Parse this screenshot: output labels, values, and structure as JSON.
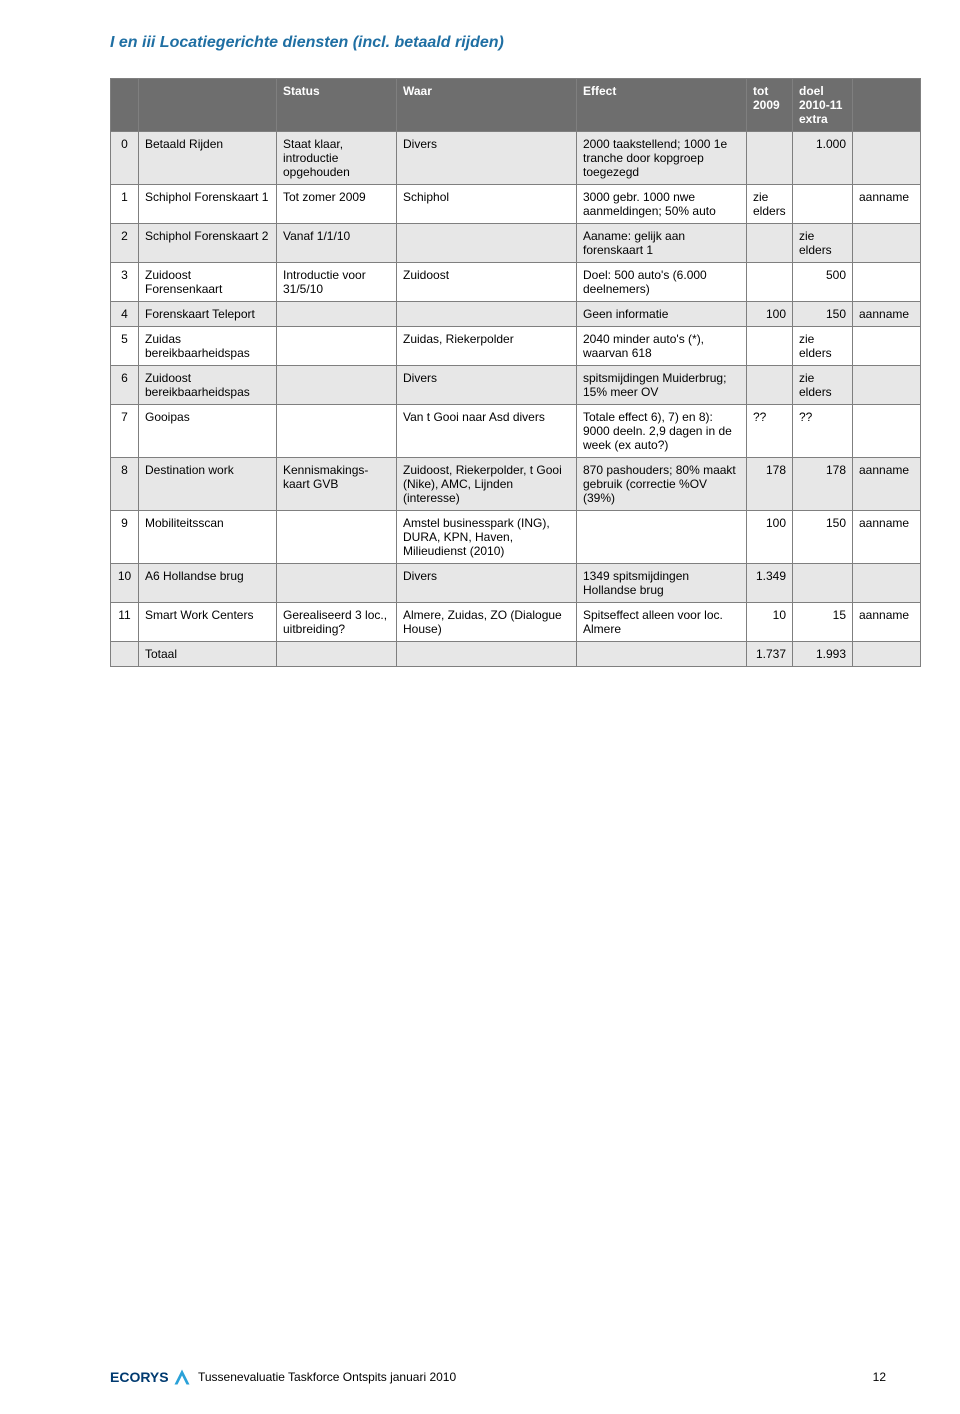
{
  "title": "I en iii Locatiegerichte diensten (incl. betaald rijden)",
  "columns": [
    "",
    "",
    "Status",
    "Waar",
    "Effect",
    "tot 2009",
    "doel 2010-11 extra",
    ""
  ],
  "rows": [
    {
      "band": true,
      "n": "0",
      "c1": "Betaald Rijden",
      "c2": "Staat klaar, introductie opgehouden",
      "c3": "Divers",
      "c4": "2000 taakstellend; 1000 1e tranche door kopgroep toegezegd",
      "c5": "",
      "c6": "1.000",
      "c7": ""
    },
    {
      "band": false,
      "n": "1",
      "c1": "Schiphol Forenskaart 1",
      "c2": "Tot zomer 2009",
      "c3": "Schiphol",
      "c4": "3000 gebr. 1000 nwe aanmeldingen; 50% auto",
      "c5": "zie elders",
      "c6": "",
      "c7": "aanname"
    },
    {
      "band": true,
      "n": "2",
      "c1": "Schiphol Forenskaart 2",
      "c2": "Vanaf 1/1/10",
      "c3": "",
      "c4": "Aaname: gelijk aan forenskaart 1",
      "c5": "",
      "c6": "zie elders",
      "c7": ""
    },
    {
      "band": false,
      "n": "3",
      "c1": "Zuidoost Forensenkaart",
      "c2": "Introductie voor 31/5/10",
      "c3": "Zuidoost",
      "c4": "Doel: 500 auto's (6.000 deelnemers)",
      "c5": "",
      "c6": "500",
      "c7": ""
    },
    {
      "band": true,
      "n": "4",
      "c1": "Forenskaart Teleport",
      "c2": "",
      "c3": "",
      "c4": "Geen informatie",
      "c5": "100",
      "c6": "150",
      "c7": "aanname"
    },
    {
      "band": false,
      "n": "5",
      "c1": "Zuidas bereikbaarheidspas",
      "c2": "",
      "c3": "Zuidas, Riekerpolder",
      "c4": "2040 minder auto's (*), waarvan 618",
      "c5": "",
      "c6": "zie elders",
      "c7": ""
    },
    {
      "band": true,
      "n": "6",
      "c1": "Zuidoost bereikbaarheidspas",
      "c2": "",
      "c3": "Divers",
      "c4": "spitsmijdingen Muiderbrug; 15% meer OV",
      "c5": "",
      "c6": "zie elders",
      "c7": ""
    },
    {
      "band": false,
      "n": "7",
      "c1": "Gooipas",
      "c2": "",
      "c3": "Van t Gooi naar Asd divers",
      "c4": "Totale effect 6), 7) en 8): 9000 deeln. 2,9 dagen in de week (ex auto?)",
      "c5": "??",
      "c6": "??",
      "c7": ""
    },
    {
      "band": true,
      "n": "8",
      "c1": "Destination work",
      "c2": "Kennismakings-kaart GVB",
      "c3": "Zuidoost, Riekerpolder, t Gooi (Nike), AMC, Lijnden (interesse)",
      "c4": "870 pashouders; 80% maakt gebruik (correctie %OV (39%)",
      "c5": "178",
      "c6": "178",
      "c7": "aanname"
    },
    {
      "band": false,
      "n": "9",
      "c1": "Mobiliteitsscan",
      "c2": "",
      "c3": "Amstel businesspark (ING), DURA, KPN, Haven, Milieudienst (2010)",
      "c4": "",
      "c5": "100",
      "c6": "150",
      "c7": "aanname"
    },
    {
      "band": true,
      "n": "10",
      "c1": "A6 Hollandse brug",
      "c2": "",
      "c3": "Divers",
      "c4": "1349 spitsmijdingen Hollandse brug",
      "c5": "1.349",
      "c6": "",
      "c7": ""
    },
    {
      "band": false,
      "n": "11",
      "c1": "Smart Work Centers",
      "c2": "Gerealiseerd 3 loc., uitbreiding?",
      "c3": "Almere, Zuidas, ZO (Dialogue House)",
      "c4": "Spitseffect alleen voor loc. Almere",
      "c5": "10",
      "c6": "15",
      "c7": "aanname"
    },
    {
      "band": true,
      "n": "",
      "c1": "Totaal",
      "c2": "",
      "c3": "",
      "c4": "",
      "c5": "1.737",
      "c6": "1.993",
      "c7": ""
    }
  ],
  "footer": {
    "logo_text": "ECORYS",
    "text": "Tussenevaluatie Taskforce Ontspits januari 2010",
    "page": "12"
  },
  "colors": {
    "title": "#1f6fa3",
    "header_bg": "#6e6e6e",
    "header_fg": "#ffffff",
    "band_bg": "#e7e7e7",
    "border": "#7f7f7f",
    "logo": "#003a70"
  }
}
